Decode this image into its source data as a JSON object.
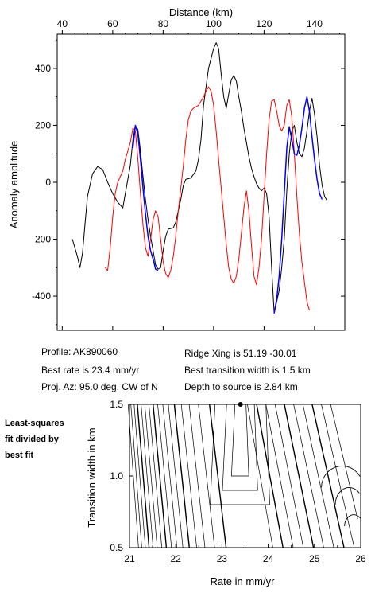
{
  "chart_data": [
    {
      "type": "line",
      "title": "",
      "xlabel": "Distance (km)",
      "ylabel": "Anomaly amplitude",
      "xlim": [
        38,
        152
      ],
      "ylim": [
        -520,
        520
      ],
      "x_ticks": [
        40,
        60,
        80,
        100,
        120,
        140
      ],
      "y_ticks": [
        -400,
        -200,
        0,
        200,
        400
      ],
      "x_axis_position": "top",
      "grid": false,
      "series": [
        {
          "color": "#000000",
          "points": [
            [
              44,
              -200
            ],
            [
              46,
              -260
            ],
            [
              47,
              -300
            ],
            [
              48,
              -250
            ],
            [
              49,
              -150
            ],
            [
              50,
              -50
            ],
            [
              52,
              30
            ],
            [
              54,
              55
            ],
            [
              56,
              45
            ],
            [
              58,
              0
            ],
            [
              60,
              -40
            ],
            [
              62,
              -70
            ],
            [
              64,
              -90
            ],
            [
              65,
              -40
            ],
            [
              67,
              60
            ],
            [
              68,
              150
            ],
            [
              69,
              200
            ],
            [
              70,
              185
            ],
            [
              71,
              110
            ],
            [
              72,
              20
            ],
            [
              73,
              -60
            ],
            [
              74,
              -130
            ],
            [
              75,
              -190
            ],
            [
              76,
              -240
            ],
            [
              77,
              -290
            ],
            [
              78,
              -305
            ],
            [
              79,
              -300
            ],
            [
              80,
              -240
            ],
            [
              81,
              -190
            ],
            [
              82,
              -165
            ],
            [
              84,
              -160
            ],
            [
              85,
              -140
            ],
            [
              87,
              -60
            ],
            [
              88,
              -10
            ],
            [
              89,
              10
            ],
            [
              91,
              15
            ],
            [
              93,
              40
            ],
            [
              94,
              80
            ],
            [
              95,
              150
            ],
            [
              96,
              270
            ],
            [
              98,
              400
            ],
            [
              100,
              470
            ],
            [
              101,
              490
            ],
            [
              102,
              470
            ],
            [
              103,
              380
            ],
            [
              104,
              300
            ],
            [
              105,
              260
            ],
            [
              106,
              310
            ],
            [
              107,
              360
            ],
            [
              108,
              375
            ],
            [
              109,
              355
            ],
            [
              110,
              300
            ],
            [
              111,
              250
            ],
            [
              112,
              190
            ],
            [
              113,
              140
            ],
            [
              114,
              90
            ],
            [
              115,
              50
            ],
            [
              116,
              20
            ],
            [
              117,
              -5
            ],
            [
              118,
              -20
            ],
            [
              119,
              -30
            ],
            [
              120,
              -20
            ],
            [
              121,
              -40
            ],
            [
              122,
              -120
            ],
            [
              123,
              -300
            ],
            [
              124,
              -460
            ],
            [
              125,
              -420
            ],
            [
              126,
              -380
            ],
            [
              127,
              -300
            ],
            [
              128,
              -200
            ],
            [
              129,
              -30
            ],
            [
              130,
              100
            ],
            [
              131,
              180
            ],
            [
              132,
              200
            ],
            [
              133,
              140
            ],
            [
              134,
              100
            ],
            [
              135,
              90
            ],
            [
              136,
              120
            ],
            [
              137,
              180
            ],
            [
              138,
              250
            ],
            [
              139,
              295
            ],
            [
              140,
              240
            ],
            [
              141,
              160
            ],
            [
              142,
              60
            ],
            [
              143,
              -10
            ],
            [
              144,
              -50
            ],
            [
              145,
              -65
            ]
          ]
        },
        {
          "color": "#ff0000",
          "points": [
            [
              57,
              -300
            ],
            [
              58,
              -310
            ],
            [
              59,
              -230
            ],
            [
              60,
              -120
            ],
            [
              61,
              -40
            ],
            [
              62,
              0
            ],
            [
              63,
              20
            ],
            [
              64,
              40
            ],
            [
              65,
              80
            ],
            [
              67,
              140
            ],
            [
              68,
              190
            ],
            [
              69,
              180
            ],
            [
              70,
              80
            ],
            [
              71,
              -40
            ],
            [
              72,
              -150
            ],
            [
              73,
              -230
            ],
            [
              74,
              -260
            ],
            [
              75,
              -200
            ],
            [
              76,
              -130
            ],
            [
              77,
              -100
            ],
            [
              78,
              -120
            ],
            [
              79,
              -200
            ],
            [
              80,
              -280
            ],
            [
              81,
              -320
            ],
            [
              82,
              -335
            ],
            [
              83,
              -310
            ],
            [
              84,
              -260
            ],
            [
              85,
              -190
            ],
            [
              86,
              -100
            ],
            [
              87,
              -20
            ],
            [
              88,
              60
            ],
            [
              89,
              150
            ],
            [
              90,
              220
            ],
            [
              91,
              250
            ],
            [
              92,
              260
            ],
            [
              94,
              270
            ],
            [
              95,
              285
            ],
            [
              96,
              300
            ],
            [
              97,
              320
            ],
            [
              98,
              335
            ],
            [
              99,
              320
            ],
            [
              100,
              270
            ],
            [
              101,
              180
            ],
            [
              102,
              80
            ],
            [
              103,
              -20
            ],
            [
              104,
              -120
            ],
            [
              105,
              -220
            ],
            [
              106,
              -300
            ],
            [
              107,
              -340
            ],
            [
              108,
              -355
            ],
            [
              109,
              -330
            ],
            [
              110,
              -270
            ],
            [
              111,
              -180
            ],
            [
              112,
              -90
            ],
            [
              113,
              -30
            ],
            [
              114,
              -100
            ],
            [
              115,
              -220
            ],
            [
              116,
              -330
            ],
            [
              117,
              -360
            ],
            [
              118,
              -300
            ],
            [
              119,
              -200
            ],
            [
              120,
              -50
            ],
            [
              121,
              100
            ],
            [
              122,
              220
            ],
            [
              123,
              285
            ],
            [
              124,
              290
            ],
            [
              125,
              250
            ],
            [
              126,
              200
            ],
            [
              127,
              180
            ],
            [
              128,
              200
            ],
            [
              129,
              270
            ],
            [
              130,
              290
            ],
            [
              131,
              230
            ],
            [
              132,
              100
            ],
            [
              133,
              -50
            ],
            [
              134,
              -180
            ],
            [
              135,
              -280
            ],
            [
              136,
              -350
            ],
            [
              137,
              -420
            ],
            [
              138,
              -450
            ]
          ]
        },
        {
          "color": "#0000ff",
          "points": [
            [
              68,
              120
            ],
            [
              69,
              200
            ],
            [
              70,
              170
            ],
            [
              71,
              80
            ],
            [
              72,
              -20
            ],
            [
              73,
              -110
            ],
            [
              74,
              -190
            ],
            [
              75,
              -240
            ],
            [
              76,
              -270
            ],
            [
              77,
              -305
            ],
            [
              78,
              -310
            ],
            [
              124,
              -460
            ],
            [
              125,
              -410
            ],
            [
              126,
              -330
            ],
            [
              127,
              -200
            ],
            [
              128,
              -40
            ],
            [
              129,
              120
            ],
            [
              130,
              195
            ],
            [
              131,
              150
            ],
            [
              132,
              100
            ],
            [
              133,
              95
            ],
            [
              134,
              130
            ],
            [
              135,
              190
            ],
            [
              136,
              260
            ],
            [
              137,
              300
            ],
            [
              138,
              250
            ],
            [
              139,
              160
            ],
            [
              140,
              80
            ],
            [
              141,
              10
            ],
            [
              142,
              -40
            ],
            [
              143,
              -60
            ]
          ]
        }
      ]
    },
    {
      "type": "contour",
      "title": "",
      "xlabel": "Rate in mm/yr",
      "ylabel": "Transition width in km",
      "xlim": [
        21,
        26
      ],
      "ylim": [
        0.5,
        1.5
      ],
      "x_ticks": [
        21,
        22,
        23,
        24,
        25,
        26
      ],
      "y_ticks": [
        0.5,
        1.0,
        1.5
      ],
      "x_tick_labels": [
        "21",
        "22",
        "23",
        "24",
        "25",
        "26"
      ],
      "y_tick_labels": [
        "0.5",
        "1.0",
        "1.5"
      ],
      "best_fit_marker": {
        "x": 23.4,
        "y": 1.5
      },
      "grid": false
    }
  ],
  "info": {
    "profile": "Profile: AK890060",
    "best_rate": "Best rate is 23.4 mm/yr",
    "proj_az": "Proj. Az: 95.0 deg. CW of N",
    "ridge_xing": "Ridge Xing is 51.19 -30.01",
    "best_width": "Best transition width is 1.5 km",
    "depth": "Depth to source is   2.84 km"
  },
  "side_label": [
    "Least-squares",
    "fit divided by",
    "best fit"
  ]
}
